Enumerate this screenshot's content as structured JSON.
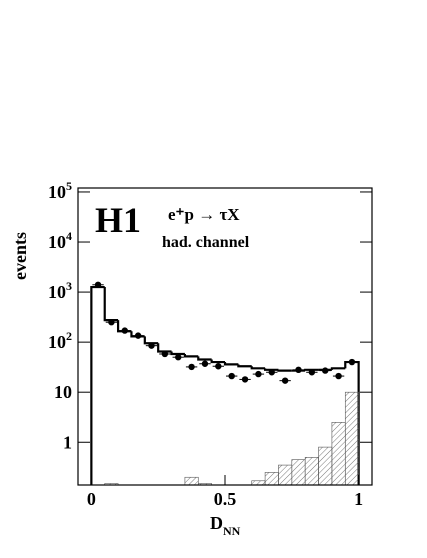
{
  "chart_data": {
    "type": "histogram",
    "experiment": "H1",
    "process": "e⁺p → τX",
    "channel": "had. channel",
    "y_label": "events",
    "x_label": {
      "main": "D",
      "sub": "NN"
    },
    "log_y": true,
    "bins": [
      0,
      0.05,
      0.1,
      0.15,
      0.2,
      0.25,
      0.3,
      0.35,
      0.4,
      0.45,
      0.5,
      0.55,
      0.6,
      0.65,
      0.7,
      0.75,
      0.8,
      0.85,
      0.9,
      0.95,
      1
    ],
    "xlim": [
      -0.05,
      1.05
    ],
    "ylim": [
      0.14,
      120000
    ],
    "xticks": [
      0,
      0.5,
      1
    ],
    "yticks": [
      1,
      10,
      {
        "value": 100,
        "label": "10",
        "exponent": "2"
      },
      {
        "value": 1000,
        "label": "10",
        "exponent": "3"
      },
      {
        "value": 10000,
        "label": "10",
        "exponent": "4"
      },
      {
        "value": 100000,
        "label": "10",
        "exponent": "5"
      }
    ],
    "series": [
      {
        "style": "step",
        "color": "#000000",
        "values": [
          1260,
          275,
          165,
          130,
          95,
          65,
          58,
          52,
          45,
          40,
          36,
          33,
          30,
          28,
          27,
          27,
          28,
          28,
          30,
          40
        ]
      },
      {
        "style": "points",
        "color": "#000000",
        "values": [
          1400,
          250,
          170,
          135,
          85,
          58,
          50,
          32,
          37,
          33,
          21,
          18,
          23,
          25,
          17,
          28,
          25,
          27,
          21,
          40
        ]
      },
      {
        "style": "hatched",
        "color": "#555555",
        "values": [
          null,
          0.15,
          null,
          null,
          null,
          null,
          null,
          0.2,
          0.15,
          null,
          null,
          null,
          0.17,
          0.25,
          0.35,
          0.45,
          0.5,
          0.8,
          2.5,
          10
        ]
      }
    ]
  }
}
